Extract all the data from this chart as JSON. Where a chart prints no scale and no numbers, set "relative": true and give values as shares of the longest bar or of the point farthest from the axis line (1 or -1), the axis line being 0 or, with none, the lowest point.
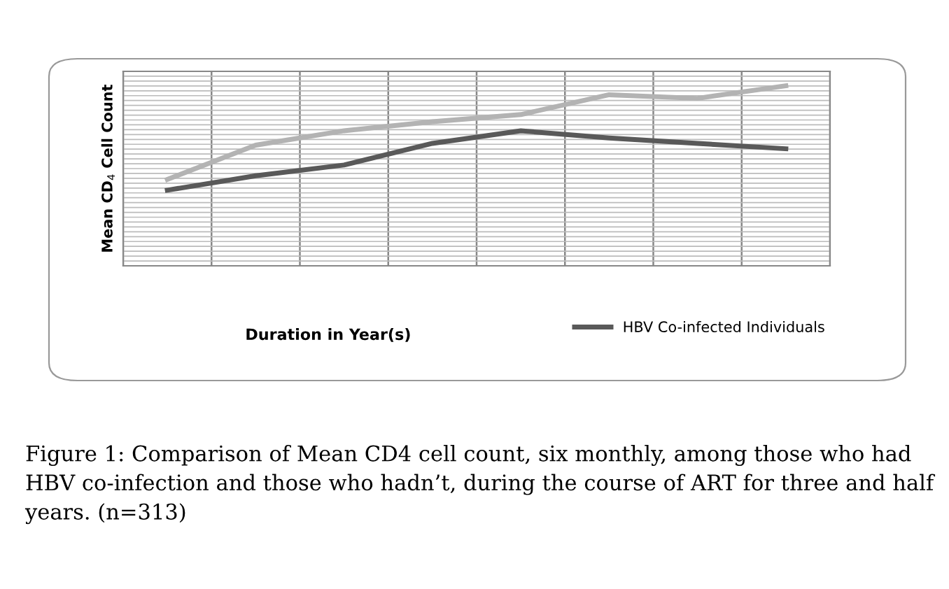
{
  "chart_data": {
    "type": "line",
    "relative": true,
    "xlabel": "Duration in Year(s)",
    "ylabel": "Mean CD$_{4}$ Cell Count",
    "categories": [
      null,
      null,
      null,
      null,
      null,
      null,
      null,
      null
    ],
    "series": [
      {
        "color": "#b3b3b3",
        "values": [
          0.48,
          0.67,
          0.75,
          0.8,
          0.84,
          0.95,
          0.93,
          1.0
        ]
      },
      {
        "name": "HBV Co-infected Individuals",
        "color": "#595959",
        "values": [
          0.42,
          0.5,
          0.56,
          0.68,
          0.75,
          0.71,
          0.68,
          0.65
        ]
      }
    ],
    "grid": true,
    "legend": "bottom",
    "tick_labels": false,
    "marker": "none",
    "line_style": "solid",
    "annotations": [
      "Figure 1: Comparison of Mean CD4 cell count, six monthly, among those who had HBV co-infection and those who hadn’t, during the course of ART for three and half years. (n=313)"
    ]
  }
}
